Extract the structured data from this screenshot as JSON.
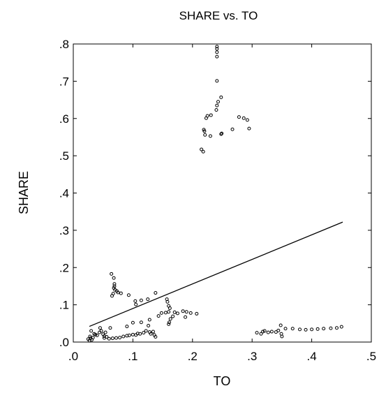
{
  "chart_data": {
    "type": "scatter",
    "title": "SHARE vs. TO",
    "xlabel": "TO",
    "ylabel": "SHARE",
    "xlim": [
      0,
      0.5
    ],
    "ylim": [
      0,
      0.8
    ],
    "x_ticks": [
      0,
      0.1,
      0.2,
      0.3,
      0.4,
      0.5
    ],
    "x_tick_labels": [
      ".0",
      ".1",
      ".2",
      ".3",
      ".4",
      ".5"
    ],
    "y_ticks": [
      0,
      0.1,
      0.2,
      0.3,
      0.4,
      0.5,
      0.6,
      0.7,
      0.8
    ],
    "y_tick_labels": [
      ".0",
      ".1",
      ".2",
      ".3",
      ".4",
      ".5",
      ".6",
      ".7",
      ".8"
    ],
    "grid": false,
    "legend": "none",
    "marker": "open-circle",
    "fit_line": {
      "x": [
        0.027,
        0.452
      ],
      "y": [
        0.042,
        0.322
      ]
    },
    "points": [
      [
        0.241,
        0.793
      ],
      [
        0.241,
        0.787
      ],
      [
        0.241,
        0.778
      ],
      [
        0.241,
        0.766
      ],
      [
        0.241,
        0.701
      ],
      [
        0.248,
        0.657
      ],
      [
        0.243,
        0.645
      ],
      [
        0.241,
        0.635
      ],
      [
        0.24,
        0.623
      ],
      [
        0.231,
        0.609
      ],
      [
        0.225,
        0.607
      ],
      [
        0.223,
        0.601
      ],
      [
        0.278,
        0.604
      ],
      [
        0.286,
        0.601
      ],
      [
        0.292,
        0.596
      ],
      [
        0.295,
        0.573
      ],
      [
        0.267,
        0.571
      ],
      [
        0.219,
        0.57
      ],
      [
        0.22,
        0.566
      ],
      [
        0.221,
        0.556
      ],
      [
        0.23,
        0.553
      ],
      [
        0.249,
        0.56
      ],
      [
        0.248,
        0.558
      ],
      [
        0.215,
        0.517
      ],
      [
        0.218,
        0.511
      ],
      [
        0.064,
        0.183
      ],
      [
        0.068,
        0.172
      ],
      [
        0.069,
        0.156
      ],
      [
        0.069,
        0.15
      ],
      [
        0.068,
        0.145
      ],
      [
        0.07,
        0.14
      ],
      [
        0.073,
        0.137
      ],
      [
        0.075,
        0.133
      ],
      [
        0.067,
        0.13
      ],
      [
        0.065,
        0.124
      ],
      [
        0.08,
        0.131
      ],
      [
        0.093,
        0.126
      ],
      [
        0.138,
        0.132
      ],
      [
        0.104,
        0.11
      ],
      [
        0.114,
        0.112
      ],
      [
        0.125,
        0.115
      ],
      [
        0.105,
        0.101
      ],
      [
        0.157,
        0.115
      ],
      [
        0.158,
        0.108
      ],
      [
        0.16,
        0.097
      ],
      [
        0.162,
        0.091
      ],
      [
        0.16,
        0.081
      ],
      [
        0.155,
        0.079
      ],
      [
        0.148,
        0.078
      ],
      [
        0.143,
        0.07
      ],
      [
        0.17,
        0.08
      ],
      [
        0.175,
        0.077
      ],
      [
        0.184,
        0.083
      ],
      [
        0.19,
        0.081
      ],
      [
        0.197,
        0.078
      ],
      [
        0.207,
        0.076
      ],
      [
        0.188,
        0.067
      ],
      [
        0.163,
        0.062
      ],
      [
        0.167,
        0.069
      ],
      [
        0.161,
        0.053
      ],
      [
        0.16,
        0.048
      ],
      [
        0.128,
        0.06
      ],
      [
        0.126,
        0.044
      ],
      [
        0.1,
        0.052
      ],
      [
        0.09,
        0.042
      ],
      [
        0.114,
        0.053
      ],
      [
        0.025,
        0.008
      ],
      [
        0.027,
        0.004
      ],
      [
        0.029,
        0.01
      ],
      [
        0.031,
        0.006
      ],
      [
        0.028,
        0.015
      ],
      [
        0.033,
        0.012
      ],
      [
        0.035,
        0.022
      ],
      [
        0.03,
        0.03
      ],
      [
        0.037,
        0.02
      ],
      [
        0.04,
        0.018
      ],
      [
        0.044,
        0.026
      ],
      [
        0.045,
        0.038
      ],
      [
        0.047,
        0.03
      ],
      [
        0.05,
        0.021
      ],
      [
        0.052,
        0.016
      ],
      [
        0.054,
        0.026
      ],
      [
        0.052,
        0.011
      ],
      [
        0.056,
        0.014
      ],
      [
        0.062,
        0.038
      ],
      [
        0.06,
        0.009
      ],
      [
        0.066,
        0.01
      ],
      [
        0.072,
        0.011
      ],
      [
        0.078,
        0.012
      ],
      [
        0.084,
        0.015
      ],
      [
        0.09,
        0.017
      ],
      [
        0.094,
        0.018
      ],
      [
        0.1,
        0.02
      ],
      [
        0.105,
        0.019
      ],
      [
        0.108,
        0.023
      ],
      [
        0.112,
        0.022
      ],
      [
        0.118,
        0.025
      ],
      [
        0.122,
        0.03
      ],
      [
        0.128,
        0.027
      ],
      [
        0.134,
        0.028
      ],
      [
        0.136,
        0.019
      ],
      [
        0.138,
        0.014
      ],
      [
        0.13,
        0.022
      ],
      [
        0.308,
        0.025
      ],
      [
        0.315,
        0.022
      ],
      [
        0.318,
        0.028
      ],
      [
        0.321,
        0.03
      ],
      [
        0.327,
        0.026
      ],
      [
        0.333,
        0.028
      ],
      [
        0.34,
        0.027
      ],
      [
        0.344,
        0.031
      ],
      [
        0.348,
        0.045
      ],
      [
        0.349,
        0.022
      ],
      [
        0.35,
        0.015
      ],
      [
        0.356,
        0.036
      ],
      [
        0.368,
        0.036
      ],
      [
        0.38,
        0.034
      ],
      [
        0.39,
        0.033
      ],
      [
        0.4,
        0.034
      ],
      [
        0.41,
        0.035
      ],
      [
        0.42,
        0.036
      ],
      [
        0.432,
        0.037
      ],
      [
        0.442,
        0.038
      ],
      [
        0.45,
        0.041
      ]
    ]
  }
}
